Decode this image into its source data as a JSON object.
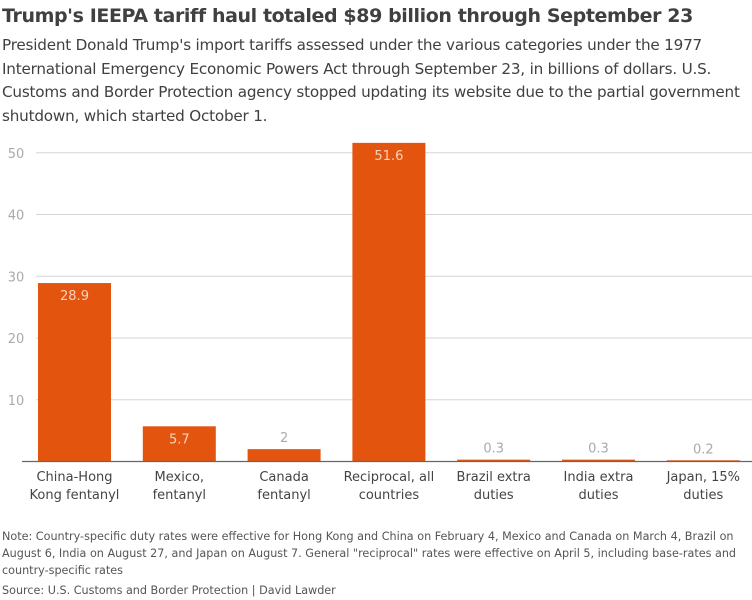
{
  "title": "Trump's IEEPA tariff haul totaled $89 billion through September 23",
  "subtitle": "President Donald Trump's import tariffs assessed under the various categories under the 1977 International Emergency Economic Powers Act through September 23, in billions of dollars. U.S. Customs and Border Protection agency stopped updating its website due to the partial government shutdown, which started October 1.",
  "note": "Note: Country-specific duty rates were effective for Hong Kong and China on February 4, Mexico and Canada on March 4, Brazil on August 6, India on August 27, and Japan on August 7. General \"reciprocal\" rates were effective on April 5, including base-rates and country-specific rates",
  "source": "Source: U.S. Customs and Border Protection | David Lawder",
  "chart_data": {
    "type": "bar",
    "categories": [
      [
        "China-Hong",
        "Kong fentanyl"
      ],
      [
        "Mexico,",
        "fentanyl"
      ],
      [
        "Canada",
        "fentanyl"
      ],
      [
        "Reciprocal, all",
        "countries"
      ],
      [
        "Brazil extra",
        "duties"
      ],
      [
        "India extra",
        "duties"
      ],
      [
        "Japan, 15%",
        "duties"
      ]
    ],
    "values": [
      28.9,
      5.7,
      2,
      51.6,
      0.3,
      0.3,
      0.2
    ],
    "data_labels": [
      "28.9",
      "5.7",
      "2",
      "51.6",
      "0.3",
      "0.3",
      "0.2"
    ],
    "yticks": [
      10,
      20,
      30,
      40,
      50
    ],
    "ylim": [
      0,
      52
    ],
    "grid": true,
    "bar_color": "#e3550f",
    "xlabel": "",
    "ylabel": ""
  }
}
